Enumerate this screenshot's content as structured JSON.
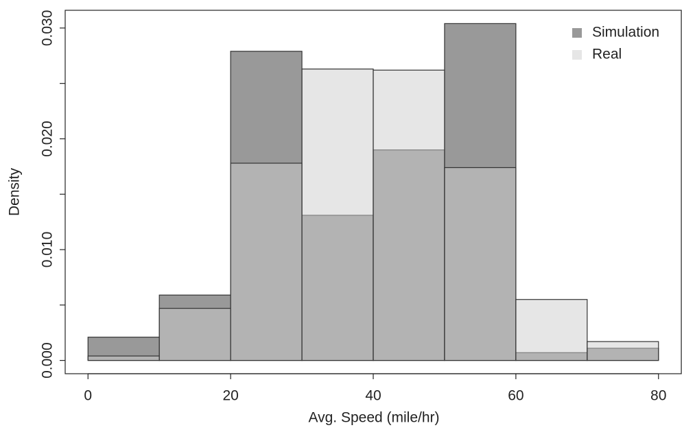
{
  "chart_data": {
    "type": "histogram",
    "xlabel": "Avg. Speed (mile/hr)",
    "ylabel": "Density",
    "bins": [
      0,
      10,
      20,
      30,
      40,
      50,
      60,
      70,
      80
    ],
    "series": [
      {
        "name": "Simulation",
        "color": "#999999",
        "values": [
          0.0021,
          0.0059,
          0.0279,
          0.0131,
          0.019,
          0.0304,
          0.0007,
          0.0011
        ]
      },
      {
        "name": "Real",
        "color": "#cdcdcd",
        "values": [
          0.0004,
          0.0047,
          0.0178,
          0.0263,
          0.0262,
          0.0174,
          0.0055,
          0.0017
        ]
      }
    ],
    "xlim": [
      -3.2,
      83.2
    ],
    "ylim": [
      -0.0012,
      0.0316
    ],
    "xticks": [
      0,
      20,
      40,
      60,
      80
    ],
    "yticks": [
      {
        "value": 0,
        "label": "0.000"
      },
      {
        "value": 0.005,
        "label": null
      },
      {
        "value": 0.01,
        "label": "0.010"
      },
      {
        "value": 0.015,
        "label": null
      },
      {
        "value": 0.02,
        "label": "0.020"
      },
      {
        "value": 0.025,
        "label": null
      },
      {
        "value": 0.03,
        "label": "0.030"
      }
    ],
    "legend": "top-right"
  }
}
